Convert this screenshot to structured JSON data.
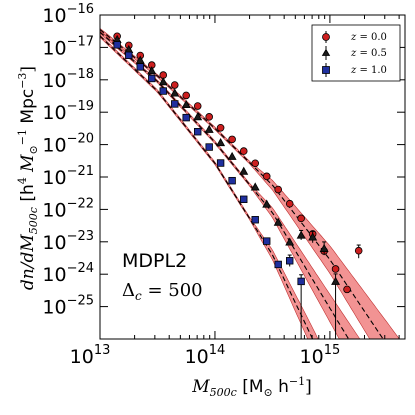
{
  "chart_data": {
    "type": "scatter",
    "title": "",
    "xlabel_var": "M",
    "xlabel_sub": "500c",
    "xlabel_unit_open": " [M",
    "xlabel_unit_sub": "⊙",
    "xlabel_unit_close": " h",
    "xlabel_unit_exp": "−1",
    "xlabel_end": "]",
    "ylabel": "dn/dM500c [h⁴ M⊙⁻¹ Mpc⁻³]",
    "ylabel_parts": {
      "var": "dn/dM",
      "sub": "500c",
      "mid": " [h",
      "exp1": "4",
      "m": " M",
      "msub": "⊙",
      "exp2": "−1",
      "mpc": " Mpc",
      "exp3": "−3",
      "end": "]"
    },
    "xscale": "log",
    "yscale": "log",
    "xlim": [
      10000000000000.0,
      4500000000000000.0
    ],
    "ylim": [
      1e-26,
      1e-16
    ],
    "x_tick_labels": [
      {
        "value": 10000000000000.0,
        "base": "10",
        "exp": "13"
      },
      {
        "value": 100000000000000.0,
        "base": "10",
        "exp": "14"
      },
      {
        "value": 1000000000000000.0,
        "base": "10",
        "exp": "15"
      }
    ],
    "y_tick_labels": [
      {
        "value": 1e-16,
        "base": "10",
        "exp": "−16"
      },
      {
        "value": 1e-17,
        "base": "10",
        "exp": "−17"
      },
      {
        "value": 1e-18,
        "base": "10",
        "exp": "−18"
      },
      {
        "value": 1e-19,
        "base": "10",
        "exp": "−19"
      },
      {
        "value": 1e-20,
        "base": "10",
        "exp": "−20"
      },
      {
        "value": 1e-21,
        "base": "10",
        "exp": "−21"
      },
      {
        "value": 1e-22,
        "base": "10",
        "exp": "−22"
      },
      {
        "value": 1e-23,
        "base": "10",
        "exp": "−23"
      },
      {
        "value": 1e-24,
        "base": "10",
        "exp": "−24"
      },
      {
        "value": 1e-25,
        "base": "10",
        "exp": "−25"
      }
    ],
    "grid": false,
    "legend_position": "top-right",
    "annotations": [
      {
        "text": "MDPL2"
      },
      {
        "text_var": "Δ",
        "text_sub": "c",
        "text_eq": " = 500"
      }
    ],
    "series": [
      {
        "name": "z = 0.0",
        "legend_var": "z",
        "legend_eq": " = 0.0",
        "marker": "circle",
        "color": "#cc1f1f",
        "x": [
          14100000000000.0,
          17800000000000.0,
          22400000000000.0,
          28200000000000.0,
          35500000000000.0,
          44700000000000.0,
          56200000000000.0,
          70800000000000.0,
          89100000000000.0,
          112000000000000.0,
          141000000000000.0,
          178000000000000.0,
          224000000000000.0,
          282000000000000.0,
          355000000000000.0,
          447000000000000.0,
          562000000000000.0,
          708000000000000.0,
          891000000000000.0,
          1120000000000000.0,
          1410000000000000.0,
          1780000000000000.0
        ],
        "y": [
          2.2e-17,
          1.15e-17,
          5.6e-18,
          2.85e-18,
          1.4e-18,
          6.9e-19,
          3.3e-19,
          1.55e-19,
          7.2e-20,
          3.3e-20,
          1.45e-20,
          6.3e-21,
          2.65e-21,
          1.05e-21,
          4.1e-22,
          1.5e-22,
          5.3e-23,
          1.75e-23,
          5.2e-24,
          1.45e-24,
          3.4e-25,
          5.3e-24
        ],
        "yerr_low_ratio": [
          1,
          1,
          1,
          1,
          1,
          1,
          1,
          1,
          1,
          1,
          1,
          1,
          1,
          1,
          1,
          1,
          1,
          1,
          1,
          1,
          1,
          1.7
        ],
        "yerr_high_ratio": [
          1,
          1,
          1,
          1,
          1,
          1,
          1,
          1,
          1,
          1,
          1,
          1,
          1,
          1,
          1,
          1,
          1,
          1,
          1,
          1,
          1,
          1.5
        ]
      },
      {
        "name": "z = 0.5",
        "legend_var": "z",
        "legend_eq": " = 0.5",
        "marker": "triangle",
        "color": "#1a1a1a",
        "x": [
          14100000000000.0,
          17800000000000.0,
          22400000000000.0,
          28200000000000.0,
          35500000000000.0,
          44700000000000.0,
          56200000000000.0,
          70800000000000.0,
          89100000000000.0,
          112000000000000.0,
          141000000000000.0,
          178000000000000.0,
          224000000000000.0,
          282000000000000.0,
          355000000000000.0,
          447000000000000.0,
          562000000000000.0,
          708000000000000.0,
          891000000000000.0,
          1120000000000000.0
        ],
        "y": [
          1.75e-17,
          8.6e-18,
          4e-18,
          1.9e-18,
          8.7e-19,
          3.9e-19,
          1.72e-19,
          7.2e-20,
          2.95e-20,
          1.15e-20,
          4.3e-21,
          1.5e-21,
          4.9e-22,
          1.45e-22,
          4e-23,
          9.8e-24,
          1.6e-23,
          1.4e-23,
          6.2e-24,
          6e-25
        ],
        "yerr_low_ratio": [
          1,
          1,
          1,
          1,
          1,
          1,
          1,
          1,
          1,
          1,
          1,
          1,
          1,
          1,
          1,
          1,
          1.4,
          1.5,
          1.6,
          1000
        ],
        "yerr_high_ratio": [
          1,
          1,
          1,
          1,
          1,
          1,
          1,
          1,
          1,
          1,
          1,
          1,
          1,
          1,
          1,
          1,
          1.4,
          1.5,
          1.6,
          1.7
        ]
      },
      {
        "name": "z = 1.0",
        "legend_var": "z",
        "legend_eq": " = 1.0",
        "marker": "square",
        "color": "#1f2f9e",
        "x": [
          14100000000000.0,
          17800000000000.0,
          22400000000000.0,
          28200000000000.0,
          35500000000000.0,
          44700000000000.0,
          56200000000000.0,
          70800000000000.0,
          89100000000000.0,
          112000000000000.0,
          141000000000000.0,
          178000000000000.0,
          224000000000000.0,
          282000000000000.0,
          355000000000000.0,
          447000000000000.0,
          562000000000000.0
        ],
        "y": [
          1.2e-17,
          5.7e-18,
          2.5e-18,
          1.1e-18,
          4.5e-19,
          1.8e-19,
          6.8e-20,
          2.5e-20,
          8.4e-21,
          2.7e-21,
          7.7e-22,
          2.05e-22,
          4.8e-23,
          1.05e-23,
          2e-24,
          2.6e-24,
          6e-25
        ],
        "yerr_low_ratio": [
          1,
          1,
          1,
          1,
          1,
          1,
          1,
          1,
          1,
          1,
          1,
          1,
          1,
          1,
          1,
          1.5,
          1000
        ],
        "yerr_high_ratio": [
          1,
          1,
          1,
          1,
          1,
          1,
          1,
          1,
          1,
          1,
          1,
          1,
          1,
          1,
          1,
          1.5,
          1.6
        ]
      }
    ],
    "model_curves": [
      {
        "series": "z = 0.0",
        "band_color": "#f08080",
        "line_color": "#000000",
        "logM": [
          13.0,
          13.5,
          14.0,
          14.5,
          15.0,
          15.5,
          15.65
        ],
        "logy": [
          -16.45,
          -17.88,
          -19.5,
          -21.25,
          -23.55,
          -26.2,
          -27.0
        ]
      },
      {
        "series": "z = 0.5",
        "band_color": "#f08080",
        "line_color": "#000000",
        "logM": [
          13.0,
          13.5,
          14.0,
          14.5,
          15.0,
          15.3,
          15.45
        ],
        "logy": [
          -16.53,
          -18.05,
          -19.93,
          -22.1,
          -25.05,
          -26.8,
          -27.5
        ]
      },
      {
        "series": "z = 1.0",
        "band_color": "#f08080",
        "line_color": "#000000",
        "logM": [
          13.0,
          13.5,
          14.0,
          14.5,
          14.85,
          15.0,
          15.1
        ],
        "logy": [
          -16.65,
          -18.35,
          -20.58,
          -23.4,
          -26.0,
          -27.2,
          -28.0
        ]
      }
    ]
  }
}
